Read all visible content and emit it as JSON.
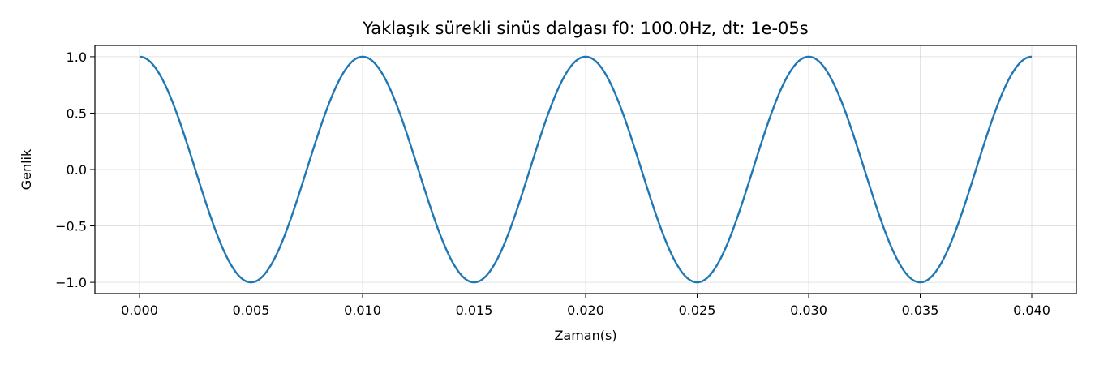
{
  "chart_data": {
    "type": "line",
    "title": "Yaklaşık sürekli sinüs dalgası f0: 100.0Hz, dt: 1e-05s",
    "xlabel": "Zaman(s)",
    "ylabel": "Genlik",
    "xlim": [
      -0.002,
      0.042
    ],
    "ylim": [
      -1.1,
      1.1
    ],
    "grid": true,
    "x_ticks": [
      0.0,
      0.005,
      0.01,
      0.015,
      0.02,
      0.025,
      0.03,
      0.035,
      0.04
    ],
    "x_tick_labels": [
      "0.000",
      "0.005",
      "0.010",
      "0.015",
      "0.020",
      "0.025",
      "0.030",
      "0.035",
      "0.040"
    ],
    "y_ticks": [
      1.0,
      0.5,
      0.0,
      -0.5,
      -1.0
    ],
    "y_tick_labels": [
      "1.0",
      "0.5",
      "0.0",
      "−0.5",
      "−1.0"
    ],
    "series": [
      {
        "function": "cos",
        "frequency_hz": 100.0,
        "amplitude": 1.0,
        "x_start": 0.0,
        "x_end": 0.04,
        "dt": 1e-05,
        "color": "#1f77b4"
      }
    ]
  }
}
